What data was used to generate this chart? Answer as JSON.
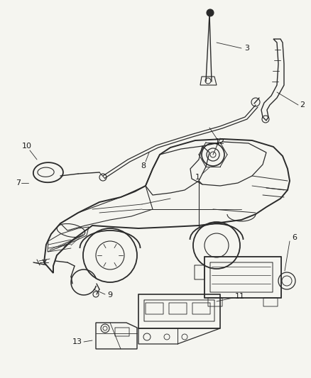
{
  "bg_color": "#f5f5f0",
  "line_color": "#2a2a2a",
  "label_color": "#1a1a1a",
  "fig_width": 4.38,
  "fig_height": 5.33,
  "dpi": 100
}
